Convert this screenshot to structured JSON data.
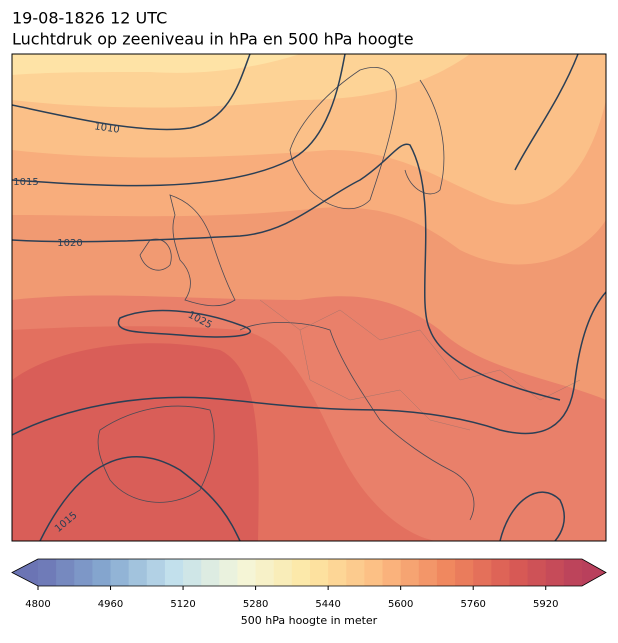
{
  "header": {
    "title": "19-08-1826 12 UTC",
    "subtitle": "Luchtdruk op zeeniveau in hPa en 500 hPa hoogte"
  },
  "map": {
    "contour_labels": [
      "1010",
      "1015",
      "1020",
      "1025",
      "1015"
    ]
  },
  "colorbar": {
    "label": "500 hPa hoogte in meter",
    "lim": [
      4800,
      6000
    ],
    "step": 40,
    "ticks": [
      4800,
      4960,
      5120,
      5280,
      5440,
      5600,
      5760,
      5920
    ],
    "colormap": [
      "#6b74b4",
      "#86a9d0",
      "#c2e0ec",
      "#f4f6da",
      "#fde7a3",
      "#fcbd83",
      "#f0885f",
      "#d95b55",
      "#b9405c"
    ]
  }
}
